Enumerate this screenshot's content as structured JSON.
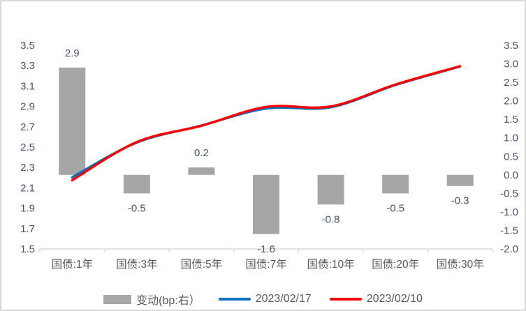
{
  "chart_data": {
    "type": "combo",
    "title": "",
    "categories": [
      "国债:1年",
      "国债:3年",
      "国债:5年",
      "国债:7年",
      "国债:10年",
      "国债:20年",
      "国债:30年"
    ],
    "series": [
      {
        "name": "变动(bp:右）",
        "type": "bar",
        "axis": "right",
        "color": "#a6a6a6",
        "values": [
          2.9,
          -0.5,
          0.2,
          -1.6,
          -0.8,
          -0.5,
          -0.3
        ],
        "labels": [
          "2.9",
          "-0.5",
          "0.2",
          "-1.6",
          "-0.8",
          "-0.5",
          "-0.3"
        ]
      },
      {
        "name": "2023/02/17",
        "type": "line",
        "axis": "left",
        "color": "#0070c0",
        "values": [
          2.204,
          2.545,
          2.712,
          2.879,
          2.892,
          3.11,
          3.292
        ]
      },
      {
        "name": "2023/02/10",
        "type": "line",
        "axis": "left",
        "color": "#ff0000",
        "values": [
          2.175,
          2.55,
          2.71,
          2.895,
          2.9,
          3.115,
          3.295
        ]
      }
    ],
    "left_axis": {
      "min": 1.5,
      "max": 3.5,
      "step": 0.2,
      "ticks": [
        "3.5",
        "3.3",
        "3.1",
        "2.9",
        "2.7",
        "2.5",
        "2.3",
        "2.1",
        "1.9",
        "1.7",
        "1.5"
      ]
    },
    "right_axis": {
      "min": -2.0,
      "max": 3.5,
      "step": 0.5,
      "ticks": [
        "3.5",
        "3.0",
        "2.5",
        "2.0",
        "1.5",
        "1.0",
        "0.5",
        "0.0",
        "-0.5",
        "-1.0",
        "-1.5",
        "-2.0"
      ]
    },
    "grid": false,
    "legend_position": "bottom",
    "colors": {
      "bar": "#a6a6a6",
      "line_blue": "#0070c0",
      "line_red": "#ff0000",
      "axis_text": "#44546a",
      "category_text": "#595959",
      "axis_line": "#d9d9d9",
      "frame_border": "#d9d9d9"
    }
  }
}
